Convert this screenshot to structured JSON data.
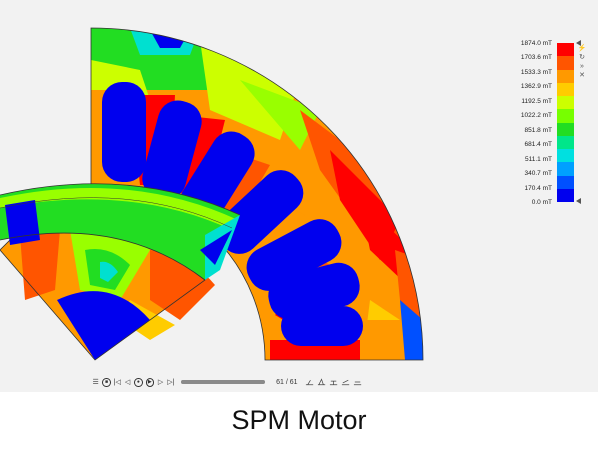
{
  "caption": "SPM Motor",
  "legend": {
    "unit": "mT",
    "levels": [
      {
        "label": "1874.0 mT",
        "color": "#ff0000"
      },
      {
        "label": "1703.6 mT",
        "color": "#ff5500"
      },
      {
        "label": "1533.3 mT",
        "color": "#ff9900"
      },
      {
        "label": "1362.9 mT",
        "color": "#ffcc00"
      },
      {
        "label": "1192.5 mT",
        "color": "#ccff00"
      },
      {
        "label": "1022.2 mT",
        "color": "#77ff00"
      },
      {
        "label": "851.8 mT",
        "color": "#22dd22"
      },
      {
        "label": "681.4 mT",
        "color": "#00e68a"
      },
      {
        "label": "511.1 mT",
        "color": "#00e0e0"
      },
      {
        "label": "340.7 mT",
        "color": "#00a0ff"
      },
      {
        "label": "170.4 mT",
        "color": "#0050ff"
      },
      {
        "label": "0.0 mT",
        "color": "#0000ee"
      }
    ]
  },
  "side_tools": {
    "icons": [
      "lightning-icon",
      "rotate-icon",
      "double-chevron-icon",
      "close-icon"
    ]
  },
  "player": {
    "frame_counter": "61 / 61",
    "progress": 1.0,
    "controls": [
      "menu-icon",
      "stop-icon",
      "skip-start-icon",
      "step-back-icon",
      "record-icon",
      "play-icon",
      "step-forward-icon",
      "skip-end-icon"
    ],
    "view_icons": [
      "view-icon-1",
      "view-icon-2",
      "view-icon-3",
      "view-icon-4",
      "view-icon-5"
    ]
  },
  "colors": {
    "red": "#ff0000",
    "orange": "#ff6600",
    "yellow": "#ffcc00",
    "lime": "#99ff00",
    "green": "#22dd22",
    "cyan": "#00e0d0",
    "lightblue": "#00a0ff",
    "blue": "#0000ee"
  }
}
